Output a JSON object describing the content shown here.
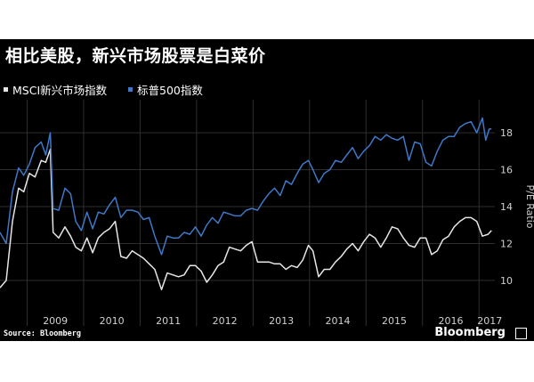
{
  "title": "相比美股，新兴市场股票是白菜价",
  "source": "Source: Bloomberg",
  "brand": "Bloomberg",
  "chart_data": {
    "type": "line",
    "ylabel": "P/E Ratio",
    "ylim": [
      8.5,
      19.5
    ],
    "yticks": [
      10,
      12,
      14,
      16,
      18
    ],
    "xlim": [
      2008.52,
      2017.28
    ],
    "xticks": [
      "2009",
      "2010",
      "2011",
      "2012",
      "2013",
      "2014",
      "2015",
      "2016",
      "2017"
    ],
    "grid": true,
    "legend_position": "top-left",
    "colors": {
      "background": "#000000",
      "grid": "#2e2e2e",
      "axis_text": "#d0d0d0"
    },
    "series": [
      {
        "name": "MSCI新兴市场指数",
        "color": "#e6e6e6",
        "points": [
          [
            2008.52,
            9.6
          ],
          [
            2008.63,
            10.0
          ],
          [
            2008.74,
            13.2
          ],
          [
            2008.85,
            15.0
          ],
          [
            2008.94,
            14.8
          ],
          [
            2009.04,
            15.8
          ],
          [
            2009.14,
            15.6
          ],
          [
            2009.25,
            16.5
          ],
          [
            2009.33,
            16.4
          ],
          [
            2009.41,
            17.1
          ],
          [
            2009.46,
            12.6
          ],
          [
            2009.56,
            12.3
          ],
          [
            2009.67,
            12.9
          ],
          [
            2009.77,
            12.4
          ],
          [
            2009.86,
            11.8
          ],
          [
            2009.96,
            11.6
          ],
          [
            2010.06,
            12.3
          ],
          [
            2010.16,
            11.5
          ],
          [
            2010.26,
            12.3
          ],
          [
            2010.36,
            12.6
          ],
          [
            2010.46,
            12.8
          ],
          [
            2010.56,
            13.2
          ],
          [
            2010.66,
            11.3
          ],
          [
            2010.76,
            11.2
          ],
          [
            2010.86,
            11.6
          ],
          [
            2010.96,
            11.4
          ],
          [
            2011.06,
            11.2
          ],
          [
            2011.16,
            10.9
          ],
          [
            2011.26,
            10.6
          ],
          [
            2011.38,
            9.5
          ],
          [
            2011.48,
            10.4
          ],
          [
            2011.58,
            10.3
          ],
          [
            2011.68,
            10.2
          ],
          [
            2011.78,
            10.3
          ],
          [
            2011.88,
            10.8
          ],
          [
            2011.98,
            10.8
          ],
          [
            2012.08,
            10.5
          ],
          [
            2012.18,
            9.9
          ],
          [
            2012.28,
            10.3
          ],
          [
            2012.38,
            10.8
          ],
          [
            2012.48,
            11.0
          ],
          [
            2012.58,
            11.8
          ],
          [
            2012.68,
            11.7
          ],
          [
            2012.78,
            11.6
          ],
          [
            2012.88,
            11.9
          ],
          [
            2012.98,
            12.1
          ],
          [
            2013.08,
            11.0
          ],
          [
            2013.18,
            11.0
          ],
          [
            2013.28,
            11.0
          ],
          [
            2013.38,
            10.9
          ],
          [
            2013.48,
            10.9
          ],
          [
            2013.58,
            10.6
          ],
          [
            2013.68,
            10.8
          ],
          [
            2013.78,
            10.7
          ],
          [
            2013.88,
            11.1
          ],
          [
            2013.98,
            11.9
          ],
          [
            2014.06,
            11.6
          ],
          [
            2014.16,
            10.2
          ],
          [
            2014.26,
            10.6
          ],
          [
            2014.36,
            10.6
          ],
          [
            2014.46,
            11.0
          ],
          [
            2014.56,
            11.3
          ],
          [
            2014.66,
            11.7
          ],
          [
            2014.76,
            12.0
          ],
          [
            2014.86,
            11.6
          ],
          [
            2014.96,
            12.1
          ],
          [
            2015.06,
            12.5
          ],
          [
            2015.16,
            12.3
          ],
          [
            2015.26,
            11.8
          ],
          [
            2015.36,
            12.3
          ],
          [
            2015.46,
            12.9
          ],
          [
            2015.56,
            12.8
          ],
          [
            2015.66,
            12.3
          ],
          [
            2015.76,
            11.9
          ],
          [
            2015.86,
            11.8
          ],
          [
            2015.96,
            12.3
          ],
          [
            2016.06,
            12.3
          ],
          [
            2016.16,
            11.4
          ],
          [
            2016.26,
            11.6
          ],
          [
            2016.36,
            12.2
          ],
          [
            2016.46,
            12.4
          ],
          [
            2016.56,
            12.9
          ],
          [
            2016.66,
            13.2
          ],
          [
            2016.76,
            13.4
          ],
          [
            2016.86,
            13.4
          ],
          [
            2016.96,
            13.2
          ],
          [
            2017.06,
            12.4
          ],
          [
            2017.16,
            12.5
          ],
          [
            2017.22,
            12.7
          ]
        ]
      },
      {
        "name": "标普500指数",
        "color": "#3f78c8",
        "points": [
          [
            2008.52,
            12.6
          ],
          [
            2008.63,
            12.0
          ],
          [
            2008.74,
            14.8
          ],
          [
            2008.85,
            16.1
          ],
          [
            2008.94,
            15.7
          ],
          [
            2009.04,
            16.3
          ],
          [
            2009.14,
            17.2
          ],
          [
            2009.25,
            17.5
          ],
          [
            2009.33,
            16.8
          ],
          [
            2009.41,
            18.0
          ],
          [
            2009.46,
            13.9
          ],
          [
            2009.56,
            13.8
          ],
          [
            2009.67,
            15.0
          ],
          [
            2009.77,
            14.7
          ],
          [
            2009.86,
            13.2
          ],
          [
            2009.96,
            12.7
          ],
          [
            2010.06,
            13.7
          ],
          [
            2010.16,
            12.8
          ],
          [
            2010.26,
            13.7
          ],
          [
            2010.36,
            13.6
          ],
          [
            2010.46,
            14.1
          ],
          [
            2010.56,
            14.5
          ],
          [
            2010.66,
            13.4
          ],
          [
            2010.76,
            13.8
          ],
          [
            2010.86,
            13.8
          ],
          [
            2010.96,
            13.7
          ],
          [
            2011.06,
            13.3
          ],
          [
            2011.16,
            13.4
          ],
          [
            2011.26,
            12.4
          ],
          [
            2011.38,
            11.4
          ],
          [
            2011.48,
            12.4
          ],
          [
            2011.58,
            12.3
          ],
          [
            2011.68,
            12.3
          ],
          [
            2011.78,
            12.6
          ],
          [
            2011.88,
            12.5
          ],
          [
            2011.98,
            12.9
          ],
          [
            2012.08,
            12.4
          ],
          [
            2012.18,
            13.0
          ],
          [
            2012.28,
            13.4
          ],
          [
            2012.38,
            13.1
          ],
          [
            2012.48,
            13.7
          ],
          [
            2012.58,
            13.6
          ],
          [
            2012.68,
            13.5
          ],
          [
            2012.78,
            13.5
          ],
          [
            2012.88,
            13.8
          ],
          [
            2012.98,
            13.9
          ],
          [
            2013.08,
            13.8
          ],
          [
            2013.18,
            14.3
          ],
          [
            2013.28,
            14.7
          ],
          [
            2013.38,
            15.0
          ],
          [
            2013.48,
            14.6
          ],
          [
            2013.58,
            15.4
          ],
          [
            2013.68,
            15.2
          ],
          [
            2013.78,
            15.8
          ],
          [
            2013.88,
            16.3
          ],
          [
            2013.98,
            16.5
          ],
          [
            2014.06,
            16.0
          ],
          [
            2014.16,
            15.3
          ],
          [
            2014.26,
            15.8
          ],
          [
            2014.36,
            16.0
          ],
          [
            2014.46,
            16.5
          ],
          [
            2014.56,
            16.4
          ],
          [
            2014.66,
            16.8
          ],
          [
            2014.76,
            17.2
          ],
          [
            2014.86,
            16.6
          ],
          [
            2014.96,
            17.0
          ],
          [
            2015.06,
            17.3
          ],
          [
            2015.16,
            17.8
          ],
          [
            2015.26,
            17.6
          ],
          [
            2015.36,
            17.9
          ],
          [
            2015.46,
            17.7
          ],
          [
            2015.56,
            17.6
          ],
          [
            2015.66,
            17.8
          ],
          [
            2015.76,
            16.5
          ],
          [
            2015.86,
            17.5
          ],
          [
            2015.96,
            17.4
          ],
          [
            2016.06,
            16.4
          ],
          [
            2016.16,
            16.2
          ],
          [
            2016.26,
            17.0
          ],
          [
            2016.36,
            17.6
          ],
          [
            2016.46,
            17.8
          ],
          [
            2016.56,
            17.8
          ],
          [
            2016.66,
            18.3
          ],
          [
            2016.76,
            18.5
          ],
          [
            2016.86,
            18.6
          ],
          [
            2016.96,
            18.0
          ],
          [
            2017.06,
            18.8
          ],
          [
            2017.12,
            17.6
          ],
          [
            2017.18,
            18.2
          ],
          [
            2017.22,
            18.2
          ]
        ]
      }
    ]
  }
}
